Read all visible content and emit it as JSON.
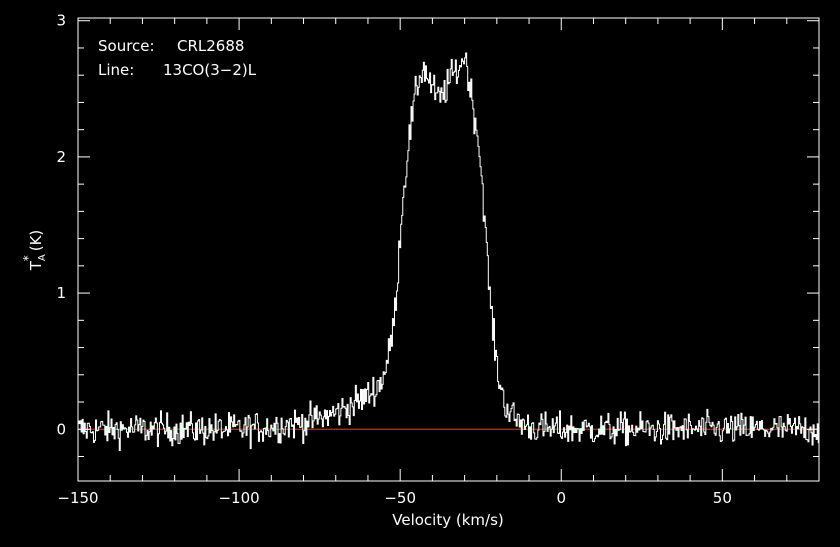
{
  "chart_data": {
    "type": "line",
    "xlabel": "Velocity (km/s)",
    "ylabel_base": "T",
    "ylabel_sup": "*",
    "ylabel_sub": "A",
    "ylabel_unit": "(K)",
    "xlim": [
      -150,
      80
    ],
    "ylim": [
      -0.38,
      3.02
    ],
    "xticks": [
      -150,
      -100,
      -50,
      0,
      50
    ],
    "yticks": [
      0,
      1,
      2,
      3
    ],
    "xtick_labels": [
      "−150",
      "−100",
      "−50",
      "0",
      "50"
    ],
    "ytick_labels": [
      "0",
      "1",
      "2",
      "3"
    ],
    "annotations": {
      "source_label": "Source:",
      "source_value": "CRL2688",
      "line_label": "Line:",
      "line_value": "13CO(3−2)L"
    },
    "baseline": 0,
    "series": [
      {
        "x": [
          -150,
          -140,
          -130,
          -120,
          -110,
          -100,
          -90,
          -80,
          -75,
          -70,
          -65,
          -60,
          -56,
          -54,
          -52,
          -51,
          -50,
          -49,
          -48,
          -47,
          -46,
          -45,
          -44,
          -43,
          -42,
          -41,
          -40,
          -39,
          -38,
          -37,
          -36,
          -35,
          -34,
          -33,
          -32,
          -31,
          -30,
          -29,
          -28,
          -27,
          -26,
          -25,
          -24,
          -23,
          -22,
          -21,
          -20,
          -19,
          -18,
          -17,
          -16,
          -15,
          -14,
          -12,
          -10,
          -5,
          0,
          10,
          20,
          30,
          40,
          50,
          60,
          70,
          80
        ],
        "y": [
          0,
          0,
          0,
          0,
          0,
          0,
          0.02,
          0.05,
          0.08,
          0.12,
          0.18,
          0.25,
          0.35,
          0.5,
          0.8,
          1.1,
          1.5,
          1.75,
          2.0,
          2.2,
          2.35,
          2.5,
          2.6,
          2.65,
          2.62,
          2.55,
          2.5,
          2.45,
          2.42,
          2.45,
          2.5,
          2.55,
          2.6,
          2.62,
          2.65,
          2.7,
          2.75,
          2.6,
          2.45,
          2.3,
          2.15,
          1.9,
          1.6,
          1.2,
          0.9,
          0.65,
          0.45,
          0.32,
          0.22,
          0.16,
          0.12,
          0.09,
          0.07,
          0.04,
          0.02,
          0,
          0,
          0,
          0,
          0,
          0,
          0,
          0,
          0,
          0
        ],
        "noise_rms": 0.06
      }
    ],
    "colors": {
      "background": "#000000",
      "axes": "#ffffff",
      "trace": "#ffffff",
      "baseline": "#e0201a"
    }
  }
}
